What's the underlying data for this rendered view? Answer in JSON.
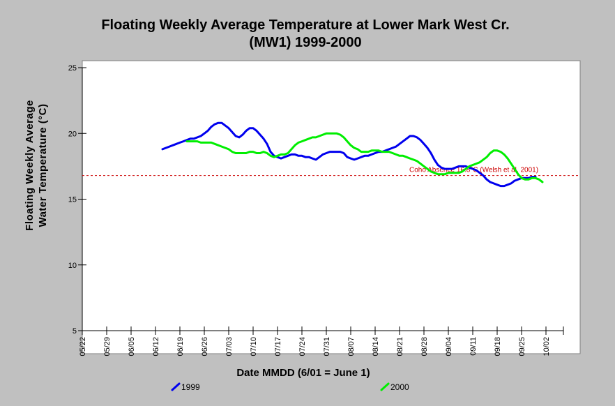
{
  "chart_data": {
    "type": "line",
    "title_line1": "Floating Weekly Average Temperature at Lower Mark West Cr.",
    "title_line2": "(MW1) 1999-2000",
    "ylabel_line1": "Floating Weekly Average",
    "ylabel_line2": "Water Temperature (°C)",
    "xlabel": "Date MMDD (6/01 = June 1)",
    "ylim": [
      5,
      25
    ],
    "yticks": [
      "5",
      "10",
      "15",
      "20",
      "25"
    ],
    "xlim_days_from_0522": [
      0,
      140
    ],
    "xticks": [
      "05/22",
      "05/29",
      "06/05",
      "06/12",
      "06/19",
      "06/26",
      "07/03",
      "07/10",
      "07/17",
      "07/24",
      "07/31",
      "08/07",
      "08/14",
      "08/21",
      "08/28",
      "09/04",
      "09/11",
      "09/18",
      "09/25",
      "10/02"
    ],
    "reference_line": {
      "y": 16.8,
      "label": "Coho Absence 16.8°C (Welsh et al. 2001)",
      "color": "#cc0000"
    },
    "grid": false,
    "legend_position": "bottom",
    "series": [
      {
        "name": "1999",
        "color": "#0000ee",
        "x": [
          "06/14",
          "06/15",
          "06/16",
          "06/17",
          "06/18",
          "06/19",
          "06/20",
          "06/21",
          "06/22",
          "06/23",
          "06/24",
          "06/25",
          "06/26",
          "06/27",
          "06/28",
          "06/29",
          "06/30",
          "07/01",
          "07/02",
          "07/03",
          "07/04",
          "07/05",
          "07/06",
          "07/07",
          "07/08",
          "07/09",
          "07/10",
          "07/11",
          "07/12",
          "07/13",
          "07/14",
          "07/15",
          "07/16",
          "07/17",
          "07/18",
          "07/19",
          "07/20",
          "07/21",
          "07/22",
          "07/23",
          "07/24",
          "07/25",
          "07/26",
          "07/27",
          "07/28",
          "07/29",
          "07/30",
          "07/31",
          "08/01",
          "08/02",
          "08/03",
          "08/04",
          "08/05",
          "08/06",
          "08/07",
          "08/08",
          "08/09",
          "08/10",
          "08/11",
          "08/12",
          "08/13",
          "08/14",
          "08/15",
          "08/16",
          "08/17",
          "08/18",
          "08/19",
          "08/20",
          "08/21",
          "08/22",
          "08/23",
          "08/24",
          "08/25",
          "08/26",
          "08/27",
          "08/28",
          "08/29",
          "08/30",
          "08/31",
          "09/01",
          "09/02",
          "09/03",
          "09/04",
          "09/05",
          "09/06",
          "09/07",
          "09/08",
          "09/09",
          "09/10",
          "09/11",
          "09/12",
          "09/13",
          "09/14",
          "09/15",
          "09/16",
          "09/17",
          "09/18",
          "09/19",
          "09/20",
          "09/21",
          "09/22",
          "09/23",
          "09/24",
          "09/25",
          "09/26",
          "09/27",
          "09/28",
          "09/29"
        ],
        "y": [
          18.8,
          18.9,
          19.0,
          19.1,
          19.2,
          19.3,
          19.4,
          19.5,
          19.6,
          19.6,
          19.7,
          19.8,
          20.0,
          20.2,
          20.5,
          20.7,
          20.8,
          20.8,
          20.6,
          20.4,
          20.1,
          19.8,
          19.7,
          19.9,
          20.2,
          20.4,
          20.4,
          20.2,
          19.9,
          19.6,
          19.2,
          18.6,
          18.3,
          18.2,
          18.1,
          18.2,
          18.3,
          18.4,
          18.4,
          18.3,
          18.3,
          18.2,
          18.2,
          18.1,
          18.0,
          18.2,
          18.4,
          18.5,
          18.6,
          18.6,
          18.6,
          18.6,
          18.5,
          18.2,
          18.1,
          18.0,
          18.1,
          18.2,
          18.3,
          18.3,
          18.4,
          18.5,
          18.6,
          18.6,
          18.7,
          18.8,
          18.9,
          19.0,
          19.2,
          19.4,
          19.6,
          19.8,
          19.8,
          19.7,
          19.5,
          19.2,
          18.9,
          18.5,
          18.0,
          17.6,
          17.4,
          17.3,
          17.3,
          17.3,
          17.4,
          17.5,
          17.5,
          17.5,
          17.4,
          17.3,
          17.2,
          17.0,
          16.8,
          16.5,
          16.3,
          16.2,
          16.1,
          16.0,
          16.0,
          16.1,
          16.2,
          16.4,
          16.5,
          16.6,
          16.6,
          16.6,
          16.7,
          16.7
        ]
      },
      {
        "name": "2000",
        "color": "#00ee00",
        "x": [
          "06/21",
          "06/22",
          "06/23",
          "06/24",
          "06/25",
          "06/26",
          "06/27",
          "06/28",
          "06/29",
          "06/30",
          "07/01",
          "07/02",
          "07/03",
          "07/04",
          "07/05",
          "07/06",
          "07/07",
          "07/08",
          "07/09",
          "07/10",
          "07/11",
          "07/12",
          "07/13",
          "07/14",
          "07/15",
          "07/16",
          "07/17",
          "07/18",
          "07/19",
          "07/20",
          "07/21",
          "07/22",
          "07/23",
          "07/24",
          "07/25",
          "07/26",
          "07/27",
          "07/28",
          "07/29",
          "07/30",
          "07/31",
          "08/01",
          "08/02",
          "08/03",
          "08/04",
          "08/05",
          "08/06",
          "08/07",
          "08/08",
          "08/09",
          "08/10",
          "08/11",
          "08/12",
          "08/13",
          "08/14",
          "08/15",
          "08/16",
          "08/17",
          "08/18",
          "08/19",
          "08/20",
          "08/21",
          "08/22",
          "08/23",
          "08/24",
          "08/25",
          "08/26",
          "08/27",
          "08/28",
          "08/29",
          "08/30",
          "08/31",
          "09/01",
          "09/02",
          "09/03",
          "09/04",
          "09/05",
          "09/06",
          "09/07",
          "09/08",
          "09/09",
          "09/10",
          "09/11",
          "09/12",
          "09/13",
          "09/14",
          "09/15",
          "09/16",
          "09/17",
          "09/18",
          "09/19",
          "09/20",
          "09/21",
          "09/22",
          "09/23",
          "09/24",
          "09/25",
          "09/26",
          "09/27",
          "09/28",
          "09/29",
          "09/30",
          "10/01"
        ],
        "y": [
          19.4,
          19.4,
          19.4,
          19.4,
          19.3,
          19.3,
          19.3,
          19.3,
          19.2,
          19.1,
          19.0,
          18.9,
          18.8,
          18.6,
          18.5,
          18.5,
          18.5,
          18.5,
          18.6,
          18.6,
          18.5,
          18.5,
          18.6,
          18.5,
          18.3,
          18.2,
          18.3,
          18.4,
          18.4,
          18.5,
          18.8,
          19.1,
          19.3,
          19.4,
          19.5,
          19.6,
          19.7,
          19.7,
          19.8,
          19.9,
          20.0,
          20.0,
          20.0,
          20.0,
          19.9,
          19.7,
          19.4,
          19.1,
          18.9,
          18.8,
          18.6,
          18.6,
          18.6,
          18.7,
          18.7,
          18.7,
          18.6,
          18.6,
          18.6,
          18.5,
          18.4,
          18.3,
          18.3,
          18.2,
          18.1,
          18.0,
          17.9,
          17.7,
          17.5,
          17.3,
          17.1,
          17.0,
          16.9,
          16.9,
          16.9,
          17.0,
          17.0,
          17.0,
          17.0,
          17.1,
          17.3,
          17.5,
          17.6,
          17.7,
          17.8,
          18.0,
          18.2,
          18.5,
          18.7,
          18.7,
          18.6,
          18.4,
          18.1,
          17.7,
          17.3,
          16.9,
          16.6,
          16.5,
          16.5,
          16.6,
          16.6,
          16.5,
          16.3
        ]
      }
    ]
  }
}
